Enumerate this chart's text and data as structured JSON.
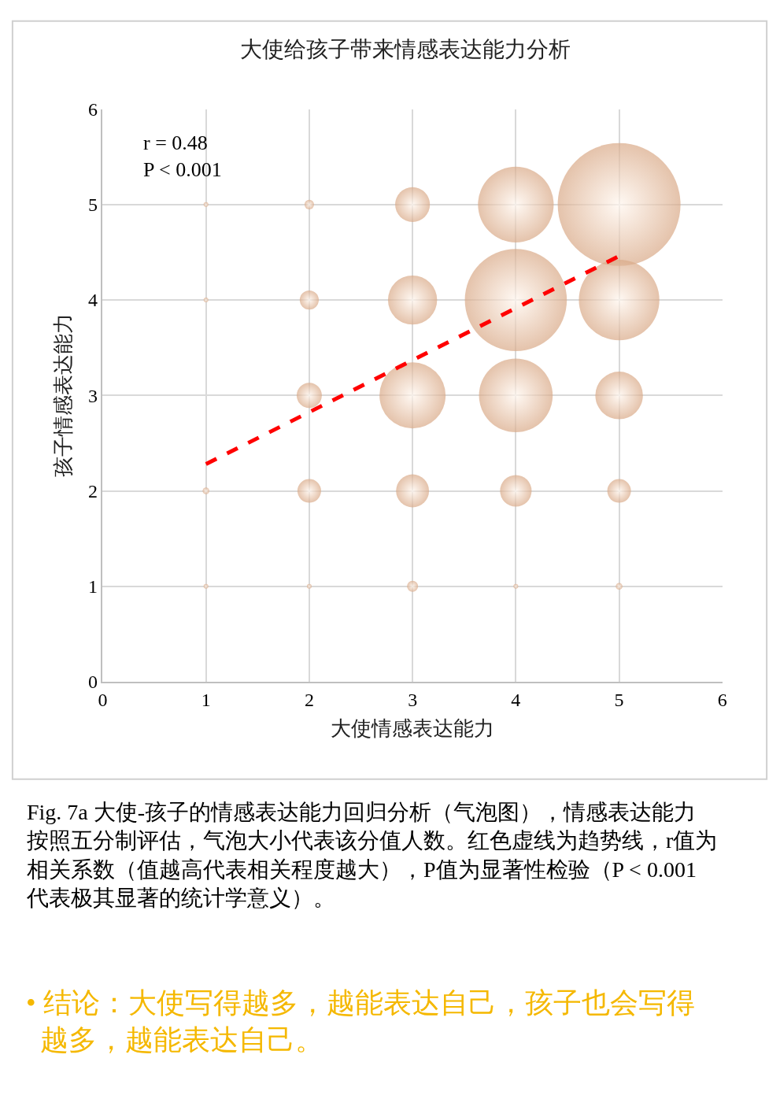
{
  "chart_data": {
    "type": "bubble",
    "title": "大使给孩子带来情感表达能力分析",
    "xlabel": "大使情感表达能力",
    "ylabel": "孩子情感表达能力",
    "xlim": [
      0,
      6
    ],
    "ylim": [
      0,
      6
    ],
    "xticks": [
      0,
      1,
      2,
      3,
      4,
      5,
      6
    ],
    "yticks": [
      0,
      1,
      2,
      3,
      4,
      5,
      6
    ],
    "grid": true,
    "series": [
      {
        "color": "#d9a987",
        "x": [
          1,
          1,
          1,
          1,
          2,
          2,
          2,
          2,
          2,
          3,
          3,
          3,
          3,
          3,
          4,
          4,
          4,
          4,
          4,
          5,
          5,
          5,
          5,
          5
        ],
        "values": [
          5,
          4,
          2,
          1,
          5,
          4,
          3,
          2,
          1,
          5,
          4,
          3,
          2,
          1,
          5,
          4,
          3,
          2,
          1,
          5,
          4,
          3,
          2,
          1
        ],
        "sizes": [
          0.0015,
          0.0015,
          0.003,
          0.0015,
          0.006,
          0.024,
          0.042,
          0.037,
          0.0015,
          0.08,
          0.16,
          0.29,
          0.072,
          0.008,
          0.38,
          0.69,
          0.36,
          0.066,
          0.0015,
          1,
          0.43,
          0.15,
          0.037,
          0.003
        ]
      },
      {
        "type": "line",
        "color": "#ff0000",
        "line_style": "dashed",
        "marker": "none",
        "x": [
          1,
          5
        ],
        "values": [
          2.28,
          4.46
        ]
      }
    ],
    "annotations": [
      "r = 0.48\nP < 0.001",
      "Fig. 7a 大使-孩子的情感表达能力回归分析（气泡图），情感表达能力按照五分制评估，气泡大小代表该分值人数。红色虚线为趋势线，r值为相关系数（值越高代表相关程度越大），P值为显著性检验（P < 0.001 代表极其显著的统计学意义）。",
      "• 结论：大使写得越多，越能表达自己，孩子也会写得越多，越能表达自己。"
    ]
  }
}
